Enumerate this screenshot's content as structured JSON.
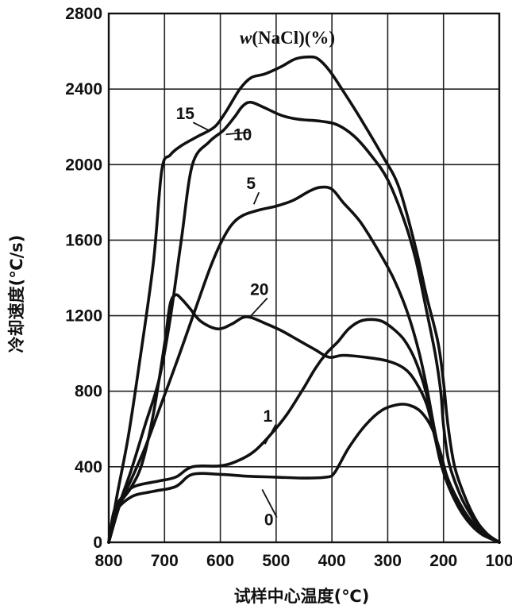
{
  "chart_data": {
    "type": "line",
    "title": "",
    "xlabel": "试样中心温度(℃)",
    "ylabel": "冷却速度(℃/s)",
    "legend_title_var": "w",
    "legend_title_rest": "(NaCl)(%)",
    "xlim": [
      800,
      100
    ],
    "ylim": [
      0,
      2800
    ],
    "x_ticks": [
      800,
      700,
      600,
      500,
      400,
      300,
      200,
      100
    ],
    "y_ticks": [
      0,
      400,
      800,
      1200,
      1600,
      2000,
      2400,
      2800
    ],
    "grid": true,
    "series": [
      {
        "name": "0",
        "points": [
          [
            800,
            0
          ],
          [
            790,
            150
          ],
          [
            760,
            240
          ],
          [
            720,
            270
          ],
          [
            680,
            295
          ],
          [
            650,
            360
          ],
          [
            600,
            360
          ],
          [
            550,
            350
          ],
          [
            500,
            345
          ],
          [
            450,
            340
          ],
          [
            410,
            345
          ],
          [
            395,
            370
          ],
          [
            370,
            500
          ],
          [
            340,
            620
          ],
          [
            310,
            700
          ],
          [
            280,
            730
          ],
          [
            260,
            725
          ],
          [
            240,
            690
          ],
          [
            220,
            600
          ],
          [
            205,
            470
          ],
          [
            195,
            360
          ],
          [
            180,
            240
          ],
          [
            160,
            140
          ],
          [
            140,
            70
          ],
          [
            120,
            30
          ],
          [
            100,
            0
          ]
        ]
      },
      {
        "name": "1",
        "points": [
          [
            800,
            0
          ],
          [
            790,
            170
          ],
          [
            770,
            260
          ],
          [
            750,
            300
          ],
          [
            710,
            325
          ],
          [
            680,
            345
          ],
          [
            650,
            400
          ],
          [
            600,
            405
          ],
          [
            570,
            430
          ],
          [
            540,
            480
          ],
          [
            510,
            570
          ],
          [
            480,
            680
          ],
          [
            450,
            820
          ],
          [
            430,
            920
          ],
          [
            410,
            1000
          ],
          [
            390,
            1060
          ],
          [
            370,
            1130
          ],
          [
            350,
            1170
          ],
          [
            330,
            1180
          ],
          [
            310,
            1170
          ],
          [
            290,
            1130
          ],
          [
            270,
            1070
          ],
          [
            250,
            960
          ],
          [
            230,
            780
          ],
          [
            215,
            560
          ],
          [
            205,
            450
          ],
          [
            190,
            320
          ],
          [
            170,
            200
          ],
          [
            150,
            110
          ],
          [
            130,
            50
          ],
          [
            100,
            0
          ]
        ]
      },
      {
        "name": "20",
        "points": [
          [
            800,
            0
          ],
          [
            785,
            180
          ],
          [
            760,
            290
          ],
          [
            740,
            420
          ],
          [
            720,
            680
          ],
          [
            700,
            1050
          ],
          [
            690,
            1260
          ],
          [
            680,
            1310
          ],
          [
            670,
            1290
          ],
          [
            655,
            1240
          ],
          [
            635,
            1170
          ],
          [
            605,
            1130
          ],
          [
            580,
            1155
          ],
          [
            560,
            1190
          ],
          [
            545,
            1190
          ],
          [
            520,
            1160
          ],
          [
            490,
            1120
          ],
          [
            460,
            1070
          ],
          [
            430,
            1020
          ],
          [
            405,
            980
          ],
          [
            380,
            990
          ],
          [
            340,
            980
          ],
          [
            300,
            960
          ],
          [
            270,
            920
          ],
          [
            250,
            850
          ],
          [
            230,
            730
          ],
          [
            215,
            550
          ],
          [
            205,
            420
          ],
          [
            190,
            290
          ],
          [
            170,
            170
          ],
          [
            150,
            90
          ],
          [
            130,
            40
          ],
          [
            100,
            0
          ]
        ]
      },
      {
        "name": "5",
        "points": [
          [
            800,
            0
          ],
          [
            780,
            200
          ],
          [
            760,
            330
          ],
          [
            735,
            500
          ],
          [
            710,
            700
          ],
          [
            680,
            940
          ],
          [
            650,
            1190
          ],
          [
            620,
            1440
          ],
          [
            600,
            1580
          ],
          [
            580,
            1680
          ],
          [
            560,
            1730
          ],
          [
            530,
            1760
          ],
          [
            500,
            1780
          ],
          [
            470,
            1810
          ],
          [
            440,
            1860
          ],
          [
            420,
            1880
          ],
          [
            400,
            1870
          ],
          [
            380,
            1800
          ],
          [
            350,
            1700
          ],
          [
            320,
            1560
          ],
          [
            290,
            1400
          ],
          [
            265,
            1220
          ],
          [
            245,
            1020
          ],
          [
            230,
            820
          ],
          [
            215,
            580
          ],
          [
            205,
            450
          ],
          [
            190,
            320
          ],
          [
            170,
            200
          ],
          [
            150,
            110
          ],
          [
            130,
            50
          ],
          [
            100,
            0
          ]
        ]
      },
      {
        "name": "10",
        "points": [
          [
            800,
            0
          ],
          [
            780,
            210
          ],
          [
            760,
            380
          ],
          [
            735,
            620
          ],
          [
            710,
            860
          ],
          [
            690,
            1180
          ],
          [
            670,
            1600
          ],
          [
            650,
            2000
          ],
          [
            620,
            2120
          ],
          [
            595,
            2180
          ],
          [
            575,
            2250
          ],
          [
            560,
            2310
          ],
          [
            545,
            2330
          ],
          [
            520,
            2300
          ],
          [
            490,
            2260
          ],
          [
            460,
            2240
          ],
          [
            420,
            2230
          ],
          [
            390,
            2210
          ],
          [
            360,
            2150
          ],
          [
            330,
            2050
          ],
          [
            300,
            1920
          ],
          [
            270,
            1700
          ],
          [
            250,
            1500
          ],
          [
            232,
            1250
          ],
          [
            215,
            1000
          ],
          [
            205,
            800
          ],
          [
            200,
            620
          ],
          [
            190,
            420
          ],
          [
            170,
            250
          ],
          [
            150,
            140
          ],
          [
            130,
            60
          ],
          [
            100,
            0
          ]
        ]
      },
      {
        "name": "15",
        "points": [
          [
            800,
            0
          ],
          [
            785,
            250
          ],
          [
            765,
            560
          ],
          [
            745,
            950
          ],
          [
            720,
            1480
          ],
          [
            705,
            1970
          ],
          [
            690,
            2050
          ],
          [
            670,
            2100
          ],
          [
            640,
            2150
          ],
          [
            610,
            2200
          ],
          [
            590,
            2280
          ],
          [
            565,
            2400
          ],
          [
            545,
            2460
          ],
          [
            520,
            2480
          ],
          [
            490,
            2520
          ],
          [
            465,
            2560
          ],
          [
            440,
            2570
          ],
          [
            425,
            2560
          ],
          [
            405,
            2500
          ],
          [
            380,
            2390
          ],
          [
            350,
            2250
          ],
          [
            310,
            2050
          ],
          [
            280,
            1880
          ],
          [
            250,
            1560
          ],
          [
            230,
            1300
          ],
          [
            210,
            1060
          ],
          [
            200,
            850
          ],
          [
            192,
            620
          ],
          [
            180,
            400
          ],
          [
            160,
            230
          ],
          [
            140,
            110
          ],
          [
            120,
            40
          ],
          [
            100,
            0
          ]
        ]
      }
    ],
    "labels": [
      {
        "text": "15",
        "x": 663,
        "y": 2240,
        "tx": 620,
        "ty": 2180
      },
      {
        "text": "10",
        "x": 560,
        "y": 2130,
        "tx": 590,
        "ty": 2160
      },
      {
        "text": "5",
        "x": 545,
        "y": 1870,
        "tx": 540,
        "ty": 1790
      },
      {
        "text": "20",
        "x": 530,
        "y": 1310,
        "tx": 545,
        "ty": 1200
      },
      {
        "text": "1",
        "x": 515,
        "y": 640,
        "tx": 520,
        "ty": 520
      },
      {
        "text": "0",
        "x": 513,
        "y": 90,
        "tx": 525,
        "ty": 280
      }
    ]
  }
}
